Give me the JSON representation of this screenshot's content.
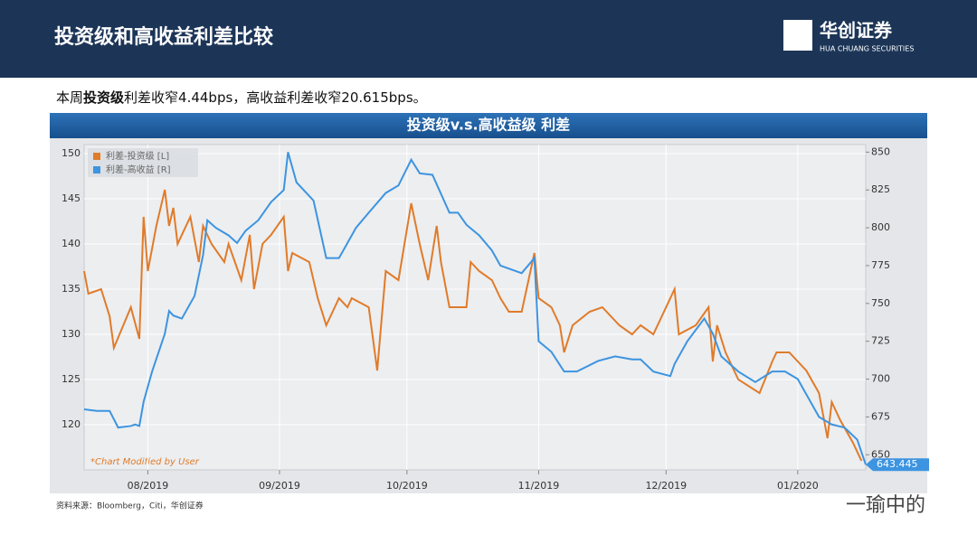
{
  "header": {
    "title": "投资级和高收益利差比较",
    "logo": "华创证券",
    "logo_sub": "HUA CHUANG SECURITIES"
  },
  "subtitle": {
    "before": "本周",
    "bold": "投资级",
    "after": "利差收窄4.44bps，高收益利差收窄20.615bps。"
  },
  "chart_data": {
    "type": "line",
    "title": "投资级v.s.高收益级 利差",
    "annotation": "*Chart Modified by User",
    "xlim": [
      0,
      184
    ],
    "xticks": [
      {
        "value": 15,
        "label": "08/2019"
      },
      {
        "value": 46,
        "label": "09/2019"
      },
      {
        "value": 76,
        "label": "10/2019"
      },
      {
        "value": 107,
        "label": "11/2019"
      },
      {
        "value": 137,
        "label": "12/2019"
      },
      {
        "value": 168,
        "label": "01/2020"
      }
    ],
    "ylim": [
      115,
      151
    ],
    "yticks": [
      120,
      125,
      130,
      135,
      140,
      145,
      150
    ],
    "y2lim": [
      640,
      855
    ],
    "y2ticks": [
      650,
      675,
      700,
      725,
      750,
      775,
      800,
      825,
      850
    ],
    "grid": true,
    "legend": "upper left",
    "series": [
      {
        "name": "利差-投资级 [L]",
        "color": "#e07b2a",
        "x": [
          0,
          1,
          4,
          6,
          7,
          11,
          13,
          14,
          15,
          17,
          19,
          20,
          21,
          22,
          25,
          27,
          28,
          30,
          33,
          34,
          37,
          39,
          40,
          42,
          44,
          47,
          48,
          49,
          53,
          55,
          57,
          60,
          62,
          63,
          67,
          69,
          71,
          74,
          77,
          79,
          81,
          83,
          84,
          86,
          90,
          91,
          93,
          96,
          98,
          100,
          103,
          106,
          107,
          110,
          112,
          113,
          115,
          119,
          122,
          126,
          129,
          131,
          134,
          139,
          140,
          144,
          147,
          148,
          149,
          151,
          154,
          159,
          162,
          163,
          166,
          170,
          173,
          175,
          176,
          178,
          181,
          183
        ],
        "values": [
          137,
          134.5,
          135,
          132,
          128.5,
          133,
          129.5,
          143,
          137,
          142,
          146,
          142,
          144,
          140,
          143,
          138,
          142,
          140,
          138,
          140,
          136,
          141,
          135,
          140,
          141,
          143,
          137,
          139,
          138,
          134,
          131,
          134,
          133,
          134,
          133,
          126,
          137,
          136,
          144.5,
          140,
          136,
          142,
          138,
          133,
          133,
          138,
          137,
          136,
          134,
          132.5,
          132.5,
          139,
          134,
          133,
          131,
          128,
          131,
          132.5,
          133,
          131,
          130,
          131,
          130,
          135,
          130,
          131,
          133,
          127,
          131,
          128,
          125,
          123.5,
          127,
          128,
          128,
          126,
          123.5,
          118.5,
          122.5,
          120.5,
          118,
          116
        ]
      },
      {
        "name": "利差-高收益 [R]",
        "color": "#3d94e0",
        "axis": "y2",
        "x": [
          0,
          3,
          6,
          8,
          11,
          12,
          13,
          14,
          16,
          19,
          20,
          21,
          23,
          26,
          28,
          29,
          31,
          34,
          36,
          38,
          41,
          44,
          47,
          48,
          50,
          54,
          57,
          60,
          62,
          64,
          67,
          71,
          74,
          77,
          79,
          82,
          86,
          88,
          90,
          93,
          96,
          98,
          103,
          106,
          107,
          110,
          113,
          116,
          121,
          125,
          129,
          131,
          134,
          138,
          139,
          142,
          146,
          148,
          150,
          154,
          158,
          162,
          165,
          168,
          173,
          176,
          179,
          182,
          184
        ],
        "values": [
          680,
          679,
          679,
          668,
          669,
          670,
          669,
          685,
          705,
          730,
          745,
          742,
          740,
          755,
          782,
          805,
          800,
          795,
          790,
          798,
          805,
          817,
          825,
          850,
          830,
          818,
          780,
          780,
          790,
          800,
          810,
          823,
          828,
          845,
          836,
          835,
          810,
          810,
          802,
          795,
          785,
          775,
          770,
          780,
          725,
          718,
          705,
          705,
          712,
          715,
          713,
          713,
          705,
          702,
          710,
          725,
          740,
          730,
          715,
          705,
          698,
          705,
          705,
          700,
          675,
          670,
          668,
          660,
          643.445
        ]
      }
    ]
  },
  "source": "资料来源：Bloomberg，Citi，华创证券",
  "watermark": "一瑜中的"
}
